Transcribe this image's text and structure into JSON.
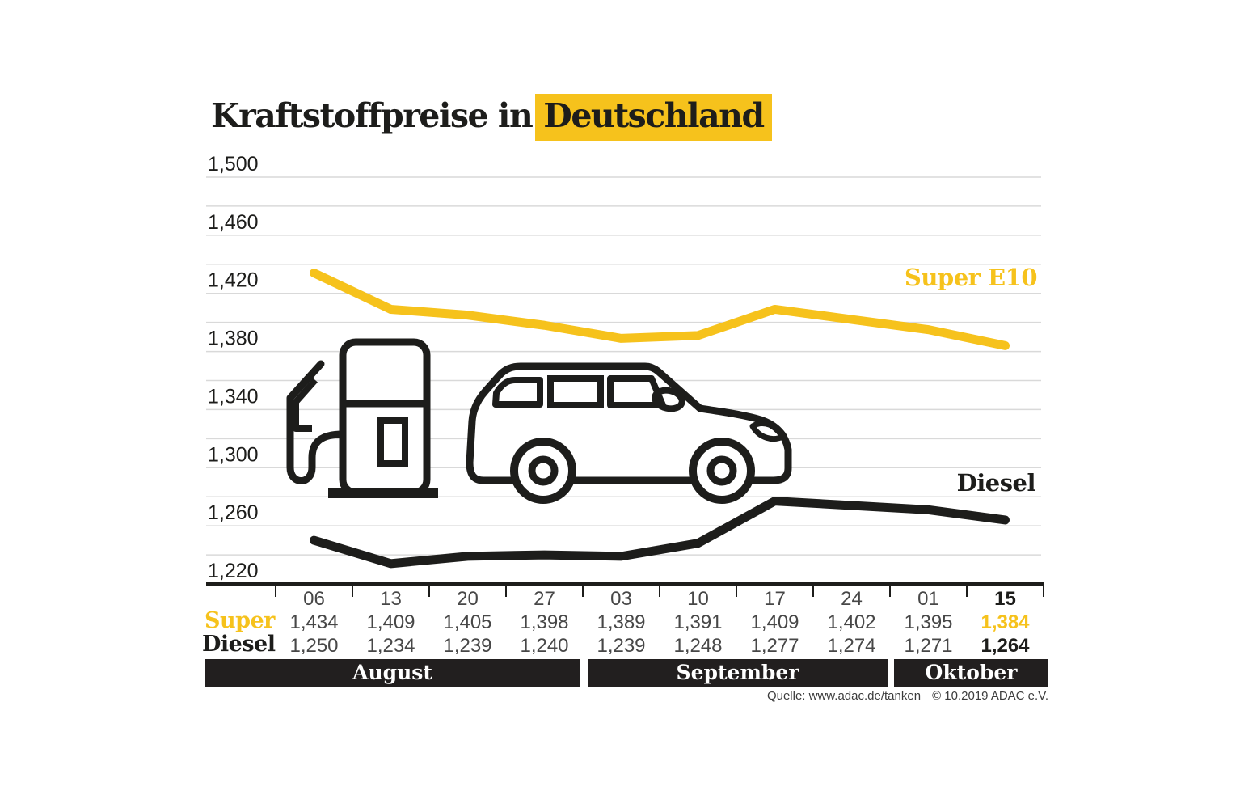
{
  "header": {
    "title_prefix": "Kraftstoffpreise in",
    "title_highlight": "Deutschland"
  },
  "colors": {
    "accent_yellow": "#F6C21C",
    "ink": "#1D1D1B",
    "gridline": "#D9D9D9",
    "value_text": "#474747",
    "band_bg": "#221F1F"
  },
  "chart_data": {
    "type": "line",
    "title": "Kraftstoffpreise in Deutschland",
    "x": [
      "06",
      "13",
      "20",
      "27",
      "03",
      "10",
      "17",
      "24",
      "01",
      "15"
    ],
    "series": [
      {
        "name": "Super E10",
        "color": "#F6C21C",
        "values": [
          1.434,
          1.409,
          1.405,
          1.398,
          1.389,
          1.391,
          1.409,
          1.402,
          1.395,
          1.384
        ]
      },
      {
        "name": "Diesel",
        "color": "#1D1D1B",
        "values": [
          1.25,
          1.234,
          1.239,
          1.24,
          1.239,
          1.248,
          1.277,
          1.274,
          1.271,
          1.264
        ]
      }
    ],
    "ylim": [
      1.22,
      1.5
    ],
    "grid_step": 0.02,
    "y_tick_labels": [
      "1,500",
      "1,460",
      "1,420",
      "1,380",
      "1,340",
      "1,300",
      "1,260",
      "1,220"
    ],
    "y_tick_values": [
      1.5,
      1.46,
      1.42,
      1.38,
      1.34,
      1.3,
      1.26,
      1.22
    ],
    "grid": true,
    "legend_position": "inline-right",
    "months": [
      {
        "label": "August",
        "span": 4
      },
      {
        "label": "September",
        "span": 4
      },
      {
        "label": "Oktober",
        "span": 2
      }
    ]
  },
  "table": {
    "row_labels": {
      "super": "Super",
      "diesel": "Diesel"
    }
  },
  "icons": [
    "fuel-pump-icon",
    "car-icon"
  ],
  "footer": {
    "source": "Quelle: www.adac.de/tanken",
    "copyright": "© 10.2019  ADAC e.V."
  }
}
